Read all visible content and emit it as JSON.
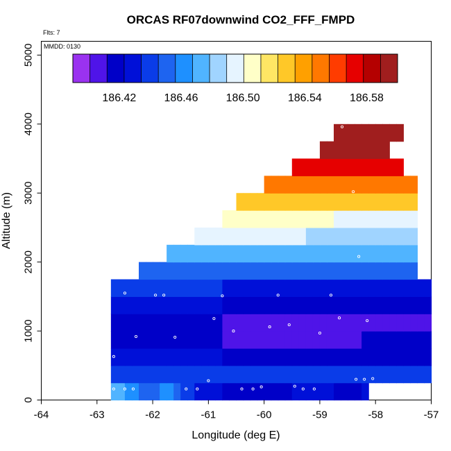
{
  "chart_data": {
    "type": "heatmap",
    "title": "ORCAS RF07downwind CO2_FFF_FMPD",
    "flights_note": "Flts: 7",
    "date_note": "MMDD: 0130",
    "xlabel": "Longitude (deg E)",
    "ylabel": "Altitude (m)",
    "xlim": [
      -64,
      -57
    ],
    "ylim": [
      0,
      5200
    ],
    "x_ticks": [
      -64,
      -63,
      -62,
      -61,
      -60,
      -59,
      -58,
      -57
    ],
    "y_ticks": [
      0,
      1000,
      2000,
      3000,
      4000,
      5000
    ],
    "colorbar": {
      "range": [
        186.39,
        186.6
      ],
      "tick_values": [
        186.42,
        186.46,
        186.5,
        186.54,
        186.58
      ],
      "tick_labels": [
        "186.42",
        "186.46",
        "186.50",
        "186.54",
        "186.58"
      ],
      "colors": [
        "#9a32f0",
        "#4f14e8",
        "#0000c8",
        "#0010d8",
        "#0a3ce8",
        "#1e64f0",
        "#1e90ff",
        "#50b4ff",
        "#a0d4ff",
        "#e6f4ff",
        "#ffffc8",
        "#ffe664",
        "#ffc828",
        "#ffa000",
        "#ff7800",
        "#ff3c00",
        "#e60000",
        "#b40000",
        "#a01e1e"
      ]
    },
    "cell_size": {
      "lon": 0.25,
      "alt": 250
    },
    "rows": [
      {
        "alt": 0,
        "lon_start": -62.75,
        "values": [
          186.47,
          186.47,
          186.46,
          186.46,
          186.45,
          186.45,
          186.45,
          186.46,
          186.46,
          186.45,
          186.44,
          186.44,
          186.43,
          186.43,
          186.43,
          186.43,
          186.42,
          186.42,
          186.42,
          186.42,
          186.42,
          186.42,
          186.42,
          186.42,
          186.42,
          186.42,
          186.43,
          186.43,
          186.43,
          186.43,
          186.43,
          186.43,
          186.42,
          186.42,
          186.42,
          186.42,
          186.43
        ]
      },
      {
        "alt": 250,
        "lon_start": -62.75,
        "values": [
          186.44,
          186.44,
          186.44,
          186.44,
          186.44,
          186.44,
          186.44,
          186.44,
          186.44,
          186.44,
          186.44,
          186.44,
          186.44,
          186.44,
          186.44,
          186.44,
          186.44,
          186.44,
          186.44,
          186.44,
          186.44,
          186.44,
          186.44,
          186.44,
          186.44,
          186.44,
          186.44,
          186.44,
          186.44,
          186.44,
          186.44,
          186.44,
          186.44,
          186.44,
          186.44,
          186.44,
          186.44,
          186.44,
          186.44,
          186.44,
          186.44,
          186.44,
          186.44,
          186.44,
          186.44,
          186.44,
          186.44,
          186.44
        ]
      },
      {
        "alt": 500,
        "lon_start": -62.75,
        "values": [
          186.43,
          186.43,
          186.43,
          186.43,
          186.43,
          186.43,
          186.43,
          186.43,
          186.43,
          186.43,
          186.43,
          186.43,
          186.43,
          186.43,
          186.43,
          186.43,
          186.42,
          186.42,
          186.42,
          186.42,
          186.42,
          186.42,
          186.42,
          186.42,
          186.42,
          186.42,
          186.42,
          186.42,
          186.42,
          186.42,
          186.42,
          186.42,
          186.42,
          186.42,
          186.42,
          186.42,
          186.42,
          186.42,
          186.42,
          186.42,
          186.42,
          186.42,
          186.42,
          186.42,
          186.42,
          186.42,
          186.42,
          186.42
        ]
      },
      {
        "alt": 750,
        "lon_start": -62.75,
        "values": [
          186.42,
          186.42,
          186.42,
          186.42,
          186.42,
          186.42,
          186.42,
          186.42,
          186.42,
          186.42,
          186.42,
          186.42,
          186.42,
          186.42,
          186.42,
          186.42,
          186.41,
          186.41,
          186.41,
          186.41,
          186.41,
          186.41,
          186.41,
          186.41,
          186.41,
          186.41,
          186.41,
          186.41,
          186.41,
          186.41,
          186.41,
          186.41,
          186.41,
          186.41,
          186.41,
          186.41,
          186.42,
          186.42,
          186.42,
          186.42,
          186.42,
          186.42,
          186.42,
          186.42,
          186.42,
          186.42,
          186.42,
          186.42
        ]
      },
      {
        "alt": 1000,
        "lon_start": -62.75,
        "values": [
          186.42,
          186.42,
          186.42,
          186.42,
          186.42,
          186.42,
          186.42,
          186.42,
          186.42,
          186.42,
          186.42,
          186.42,
          186.42,
          186.42,
          186.42,
          186.42,
          186.41,
          186.41,
          186.41,
          186.41,
          186.41,
          186.41,
          186.41,
          186.41,
          186.41,
          186.41,
          186.41,
          186.41,
          186.41,
          186.41,
          186.41,
          186.41,
          186.41,
          186.41,
          186.41,
          186.41,
          186.41,
          186.41,
          186.41,
          186.41,
          186.41,
          186.41,
          186.41,
          186.41,
          186.41,
          186.41,
          186.41,
          186.41
        ]
      },
      {
        "alt": 1250,
        "lon_start": -62.75,
        "values": [
          186.43,
          186.43,
          186.43,
          186.43,
          186.43,
          186.43,
          186.43,
          186.43,
          186.43,
          186.43,
          186.43,
          186.43,
          186.43,
          186.43,
          186.43,
          186.43,
          186.42,
          186.42,
          186.42,
          186.42,
          186.42,
          186.42,
          186.42,
          186.42,
          186.42,
          186.42,
          186.42,
          186.42,
          186.42,
          186.42,
          186.42,
          186.42,
          186.42,
          186.42,
          186.42,
          186.42,
          186.42,
          186.42,
          186.42,
          186.42,
          186.42,
          186.42,
          186.42,
          186.42,
          186.42,
          186.42,
          186.42,
          186.42
        ]
      },
      {
        "alt": 1500,
        "lon_start": -62.75,
        "values": [
          186.44,
          186.44,
          186.44,
          186.44,
          186.44,
          186.44,
          186.44,
          186.44,
          186.44,
          186.44,
          186.44,
          186.44,
          186.44,
          186.44,
          186.44,
          186.44,
          186.43,
          186.43,
          186.43,
          186.43,
          186.43,
          186.43,
          186.43,
          186.43,
          186.43,
          186.43,
          186.43,
          186.43,
          186.43,
          186.43,
          186.43,
          186.43,
          186.43,
          186.43,
          186.43,
          186.43,
          186.43,
          186.43,
          186.43,
          186.43,
          186.43,
          186.43,
          186.43,
          186.43,
          186.43,
          186.43,
          186.43,
          186.43
        ]
      },
      {
        "alt": 1750,
        "lon_start": -62.25,
        "values": [
          186.45,
          186.45,
          186.45,
          186.45,
          186.45,
          186.45,
          186.45,
          186.45,
          186.45,
          186.45,
          186.45,
          186.45,
          186.45,
          186.45,
          186.45,
          186.45,
          186.45,
          186.45,
          186.45,
          186.45,
          186.45,
          186.45,
          186.45,
          186.45,
          186.45,
          186.45,
          186.45,
          186.45,
          186.45,
          186.45,
          186.45,
          186.45,
          186.45,
          186.45,
          186.45,
          186.45,
          186.45,
          186.45,
          186.45,
          186.45
        ]
      },
      {
        "alt": 2000,
        "lon_start": -61.75,
        "values": [
          186.47,
          186.47,
          186.47,
          186.47,
          186.47,
          186.47,
          186.47,
          186.47,
          186.47,
          186.47,
          186.47,
          186.47,
          186.47,
          186.47,
          186.47,
          186.47,
          186.47,
          186.47,
          186.47,
          186.47,
          186.47,
          186.47,
          186.47,
          186.47,
          186.47,
          186.47,
          186.47,
          186.47,
          186.47,
          186.47,
          186.47,
          186.47,
          186.47,
          186.47,
          186.47,
          186.47
        ]
      },
      {
        "alt": 2250,
        "lon_start": -61.25,
        "values": [
          186.49,
          186.49,
          186.49,
          186.49,
          186.49,
          186.49,
          186.49,
          186.49,
          186.49,
          186.49,
          186.49,
          186.49,
          186.49,
          186.49,
          186.49,
          186.49,
          186.48,
          186.48,
          186.48,
          186.48,
          186.48,
          186.48,
          186.48,
          186.48,
          186.48,
          186.48,
          186.48,
          186.48,
          186.48,
          186.48,
          186.48,
          186.48
        ]
      },
      {
        "alt": 2500,
        "lon_start": -60.75,
        "values": [
          186.51,
          186.51,
          186.51,
          186.51,
          186.51,
          186.51,
          186.51,
          186.51,
          186.51,
          186.51,
          186.51,
          186.51,
          186.51,
          186.51,
          186.51,
          186.51,
          186.5,
          186.5,
          186.5,
          186.5,
          186.5,
          186.5,
          186.5,
          186.5,
          186.5,
          186.5,
          186.5,
          186.5
        ]
      },
      {
        "alt": 2750,
        "lon_start": -60.5,
        "values": [
          186.53,
          186.53,
          186.53,
          186.53,
          186.53,
          186.53,
          186.53,
          186.53,
          186.53,
          186.53,
          186.53,
          186.53,
          186.53,
          186.53,
          186.53,
          186.53,
          186.53,
          186.53,
          186.53,
          186.53,
          186.53,
          186.53,
          186.53,
          186.53,
          186.53,
          186.53
        ]
      },
      {
        "alt": 3000,
        "lon_start": -60.0,
        "values": [
          186.55,
          186.55,
          186.55,
          186.55,
          186.55,
          186.55,
          186.55,
          186.55,
          186.55,
          186.55,
          186.55,
          186.55,
          186.55,
          186.55,
          186.55,
          186.55,
          186.55,
          186.55,
          186.55,
          186.55,
          186.55,
          186.55
        ]
      },
      {
        "alt": 3250,
        "lon_start": -59.5,
        "values": [
          186.57,
          186.57,
          186.57,
          186.57,
          186.57,
          186.57,
          186.57,
          186.57,
          186.57,
          186.57,
          186.57,
          186.57,
          186.57,
          186.57,
          186.57,
          186.57
        ]
      },
      {
        "alt": 3500,
        "lon_start": -59.0,
        "values": [
          186.59,
          186.59,
          186.59,
          186.59,
          186.59,
          186.59,
          186.59,
          186.59,
          186.59,
          186.59
        ]
      },
      {
        "alt": 3750,
        "lon_start": -58.75,
        "values": [
          186.6,
          186.6,
          186.6,
          186.6,
          186.6,
          186.6,
          186.6,
          186.6,
          186.6,
          186.6
        ]
      }
    ],
    "sample_points": [
      {
        "lon": -62.7,
        "alt": 160
      },
      {
        "lon": -62.5,
        "alt": 160
      },
      {
        "lon": -62.35,
        "alt": 160
      },
      {
        "lon": -61.4,
        "alt": 160
      },
      {
        "lon": -61.2,
        "alt": 160
      },
      {
        "lon": -61.0,
        "alt": 280
      },
      {
        "lon": -60.4,
        "alt": 160
      },
      {
        "lon": -60.2,
        "alt": 160
      },
      {
        "lon": -60.05,
        "alt": 190
      },
      {
        "lon": -59.45,
        "alt": 200
      },
      {
        "lon": -59.3,
        "alt": 160
      },
      {
        "lon": -59.1,
        "alt": 160
      },
      {
        "lon": -58.35,
        "alt": 300
      },
      {
        "lon": -58.2,
        "alt": 300
      },
      {
        "lon": -58.05,
        "alt": 310
      },
      {
        "lon": -62.7,
        "alt": 630
      },
      {
        "lon": -62.3,
        "alt": 920
      },
      {
        "lon": -61.6,
        "alt": 910
      },
      {
        "lon": -60.55,
        "alt": 1000
      },
      {
        "lon": -59.9,
        "alt": 1060
      },
      {
        "lon": -59.55,
        "alt": 1090
      },
      {
        "lon": -59.0,
        "alt": 970
      },
      {
        "lon": -58.65,
        "alt": 1190
      },
      {
        "lon": -58.15,
        "alt": 1150
      },
      {
        "lon": -60.9,
        "alt": 1180
      },
      {
        "lon": -62.5,
        "alt": 1550
      },
      {
        "lon": -61.95,
        "alt": 1520
      },
      {
        "lon": -61.8,
        "alt": 1520
      },
      {
        "lon": -60.75,
        "alt": 1510
      },
      {
        "lon": -59.75,
        "alt": 1520
      },
      {
        "lon": -58.8,
        "alt": 1520
      },
      {
        "lon": -58.3,
        "alt": 2080
      },
      {
        "lon": -58.4,
        "alt": 3020
      },
      {
        "lon": -58.6,
        "alt": 3960
      }
    ]
  }
}
